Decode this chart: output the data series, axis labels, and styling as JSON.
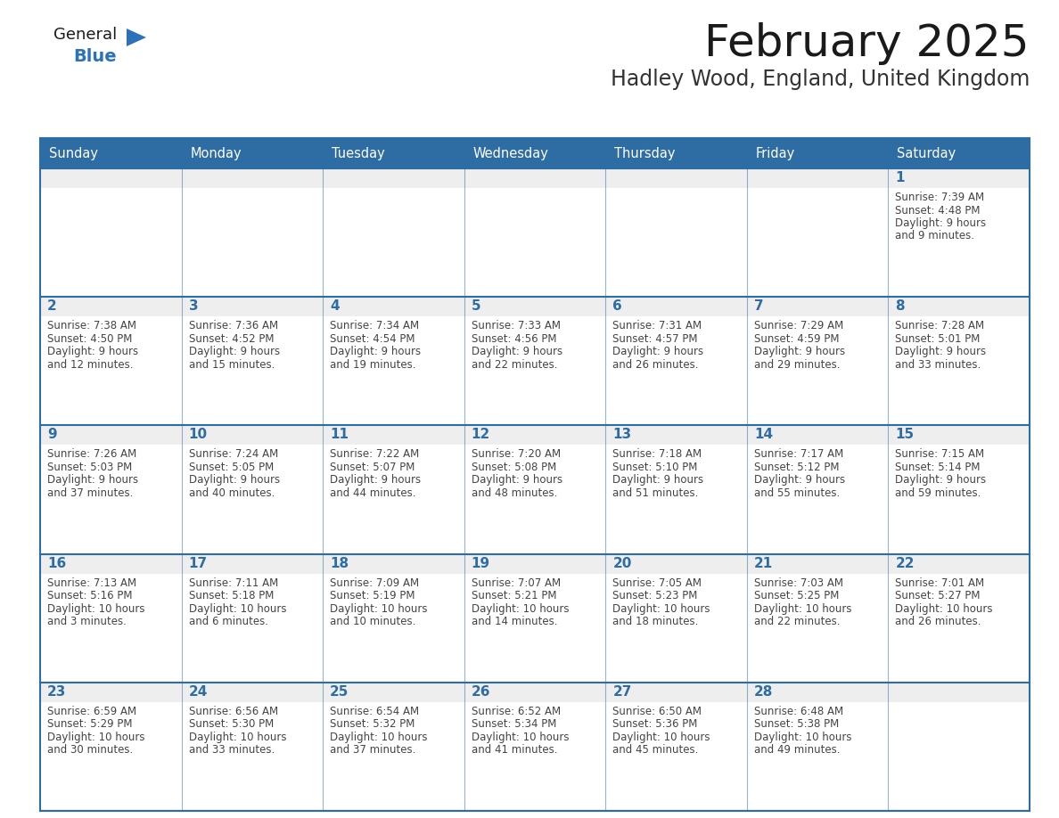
{
  "title": "February 2025",
  "subtitle": "Hadley Wood, England, United Kingdom",
  "days_of_week": [
    "Sunday",
    "Monday",
    "Tuesday",
    "Wednesday",
    "Thursday",
    "Friday",
    "Saturday"
  ],
  "header_bg": "#2E6DA4",
  "header_text_color": "#FFFFFF",
  "cell_bg_gray": "#EEEEEE",
  "cell_bg_white": "#FFFFFF",
  "border_color": "#2E6DA4",
  "day_number_color": "#2E6DA4",
  "text_color": "#444444",
  "title_color": "#1a1a1a",
  "subtitle_color": "#333333",
  "logo_general_color": "#1a1a1a",
  "logo_blue_color": "#2B72B8",
  "calendar_data": [
    [
      null,
      null,
      null,
      null,
      null,
      null,
      {
        "day": 1,
        "sunrise": "7:39 AM",
        "sunset": "4:48 PM",
        "daylight": "9 hours and 9 minutes."
      }
    ],
    [
      {
        "day": 2,
        "sunrise": "7:38 AM",
        "sunset": "4:50 PM",
        "daylight": "9 hours and 12 minutes."
      },
      {
        "day": 3,
        "sunrise": "7:36 AM",
        "sunset": "4:52 PM",
        "daylight": "9 hours and 15 minutes."
      },
      {
        "day": 4,
        "sunrise": "7:34 AM",
        "sunset": "4:54 PM",
        "daylight": "9 hours and 19 minutes."
      },
      {
        "day": 5,
        "sunrise": "7:33 AM",
        "sunset": "4:56 PM",
        "daylight": "9 hours and 22 minutes."
      },
      {
        "day": 6,
        "sunrise": "7:31 AM",
        "sunset": "4:57 PM",
        "daylight": "9 hours and 26 minutes."
      },
      {
        "day": 7,
        "sunrise": "7:29 AM",
        "sunset": "4:59 PM",
        "daylight": "9 hours and 29 minutes."
      },
      {
        "day": 8,
        "sunrise": "7:28 AM",
        "sunset": "5:01 PM",
        "daylight": "9 hours and 33 minutes."
      }
    ],
    [
      {
        "day": 9,
        "sunrise": "7:26 AM",
        "sunset": "5:03 PM",
        "daylight": "9 hours and 37 minutes."
      },
      {
        "day": 10,
        "sunrise": "7:24 AM",
        "sunset": "5:05 PM",
        "daylight": "9 hours and 40 minutes."
      },
      {
        "day": 11,
        "sunrise": "7:22 AM",
        "sunset": "5:07 PM",
        "daylight": "9 hours and 44 minutes."
      },
      {
        "day": 12,
        "sunrise": "7:20 AM",
        "sunset": "5:08 PM",
        "daylight": "9 hours and 48 minutes."
      },
      {
        "day": 13,
        "sunrise": "7:18 AM",
        "sunset": "5:10 PM",
        "daylight": "9 hours and 51 minutes."
      },
      {
        "day": 14,
        "sunrise": "7:17 AM",
        "sunset": "5:12 PM",
        "daylight": "9 hours and 55 minutes."
      },
      {
        "day": 15,
        "sunrise": "7:15 AM",
        "sunset": "5:14 PM",
        "daylight": "9 hours and 59 minutes."
      }
    ],
    [
      {
        "day": 16,
        "sunrise": "7:13 AM",
        "sunset": "5:16 PM",
        "daylight": "10 hours and 3 minutes."
      },
      {
        "day": 17,
        "sunrise": "7:11 AM",
        "sunset": "5:18 PM",
        "daylight": "10 hours and 6 minutes."
      },
      {
        "day": 18,
        "sunrise": "7:09 AM",
        "sunset": "5:19 PM",
        "daylight": "10 hours and 10 minutes."
      },
      {
        "day": 19,
        "sunrise": "7:07 AM",
        "sunset": "5:21 PM",
        "daylight": "10 hours and 14 minutes."
      },
      {
        "day": 20,
        "sunrise": "7:05 AM",
        "sunset": "5:23 PM",
        "daylight": "10 hours and 18 minutes."
      },
      {
        "day": 21,
        "sunrise": "7:03 AM",
        "sunset": "5:25 PM",
        "daylight": "10 hours and 22 minutes."
      },
      {
        "day": 22,
        "sunrise": "7:01 AM",
        "sunset": "5:27 PM",
        "daylight": "10 hours and 26 minutes."
      }
    ],
    [
      {
        "day": 23,
        "sunrise": "6:59 AM",
        "sunset": "5:29 PM",
        "daylight": "10 hours and 30 minutes."
      },
      {
        "day": 24,
        "sunrise": "6:56 AM",
        "sunset": "5:30 PM",
        "daylight": "10 hours and 33 minutes."
      },
      {
        "day": 25,
        "sunrise": "6:54 AM",
        "sunset": "5:32 PM",
        "daylight": "10 hours and 37 minutes."
      },
      {
        "day": 26,
        "sunrise": "6:52 AM",
        "sunset": "5:34 PM",
        "daylight": "10 hours and 41 minutes."
      },
      {
        "day": 27,
        "sunrise": "6:50 AM",
        "sunset": "5:36 PM",
        "daylight": "10 hours and 45 minutes."
      },
      {
        "day": 28,
        "sunrise": "6:48 AM",
        "sunset": "5:38 PM",
        "daylight": "10 hours and 49 minutes."
      },
      null
    ]
  ]
}
